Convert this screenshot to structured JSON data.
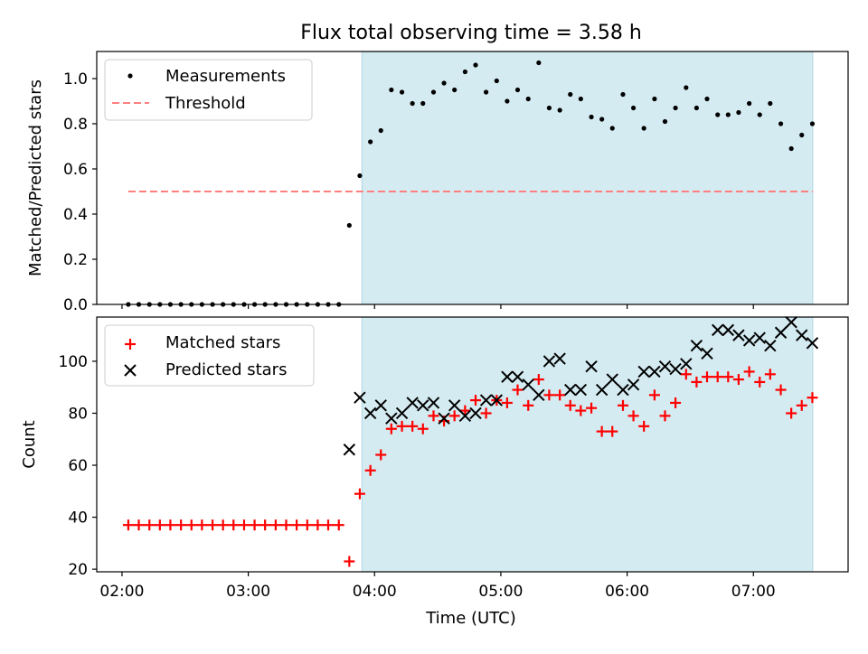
{
  "figure": {
    "title": "Flux total observing time = 3.58 h",
    "xlabel": "Time (UTC)",
    "x_ticks": [
      {
        "value": 2.0,
        "label": "02:00"
      },
      {
        "value": 3.0,
        "label": "03:00"
      },
      {
        "value": 4.0,
        "label": "04:00"
      },
      {
        "value": 5.0,
        "label": "05:00"
      },
      {
        "value": 6.0,
        "label": "06:00"
      },
      {
        "value": 7.0,
        "label": "07:00"
      }
    ],
    "shade_color": "#d4ebf1",
    "shade_edge_color": "#add8e6"
  },
  "chart_data": [
    {
      "type": "scatter",
      "panel": "top",
      "ylabel": "Matched/Predicted stars",
      "xlim": [
        1.8,
        7.75
      ],
      "ylim": [
        0.0,
        1.12
      ],
      "yticks": [
        0.0,
        0.2,
        0.4,
        0.6,
        0.8,
        1.0
      ],
      "ytick_labels": [
        "0.0",
        "0.2",
        "0.4",
        "0.6",
        "0.8",
        "1.0"
      ],
      "shaded_interval": [
        3.9,
        7.47
      ],
      "legend_position": "top-left",
      "legend": [
        {
          "label": "Measurements",
          "marker": "dot",
          "color": "#000000"
        },
        {
          "label": "Threshold",
          "marker": "dashed-line",
          "color": "#ff7f7f"
        }
      ],
      "threshold": {
        "value": 0.5,
        "x_start": 2.05,
        "x_end": 7.47,
        "color": "#ff7f7f"
      },
      "series": [
        {
          "name": "Measurements",
          "color": "#000000",
          "x": [
            2.05,
            2.133,
            2.217,
            2.3,
            2.383,
            2.467,
            2.55,
            2.633,
            2.717,
            2.8,
            2.883,
            2.967,
            3.05,
            3.133,
            3.217,
            3.3,
            3.383,
            3.467,
            3.55,
            3.633,
            3.717,
            3.8,
            3.883,
            3.967,
            4.05,
            4.133,
            4.217,
            4.3,
            4.383,
            4.467,
            4.55,
            4.633,
            4.717,
            4.8,
            4.883,
            4.967,
            5.05,
            5.133,
            5.217,
            5.3,
            5.383,
            5.467,
            5.55,
            5.633,
            5.717,
            5.8,
            5.883,
            5.967,
            6.05,
            6.133,
            6.217,
            6.3,
            6.383,
            6.467,
            6.55,
            6.633,
            6.717,
            6.8,
            6.883,
            6.967,
            7.05,
            7.133,
            7.217,
            7.3,
            7.383,
            7.467
          ],
          "y": [
            0,
            0,
            0,
            0,
            0,
            0,
            0,
            0,
            0,
            0,
            0,
            0,
            0,
            0,
            0,
            0,
            0,
            0,
            0,
            0,
            0,
            0.35,
            0.57,
            0.72,
            0.77,
            0.95,
            0.94,
            0.89,
            0.89,
            0.94,
            0.98,
            0.95,
            1.03,
            1.06,
            0.94,
            0.99,
            0.9,
            0.95,
            0.91,
            1.07,
            0.87,
            0.86,
            0.93,
            0.91,
            0.83,
            0.82,
            0.78,
            0.93,
            0.87,
            0.78,
            0.91,
            0.81,
            0.87,
            0.96,
            0.87,
            0.91,
            0.84,
            0.84,
            0.85,
            0.89,
            0.84,
            0.89,
            0.8,
            0.69,
            0.75,
            0.8
          ]
        }
      ]
    },
    {
      "type": "scatter",
      "panel": "bottom",
      "ylabel": "Count",
      "xlim": [
        1.8,
        7.75
      ],
      "ylim": [
        19.0,
        117.0
      ],
      "yticks": [
        20,
        40,
        60,
        80,
        100
      ],
      "ytick_labels": [
        "20",
        "40",
        "60",
        "80",
        "100"
      ],
      "shaded_interval": [
        3.9,
        7.47
      ],
      "legend_position": "top-left",
      "legend": [
        {
          "label": "Matched stars",
          "marker": "plus",
          "color": "#ff0000"
        },
        {
          "label": "Predicted stars",
          "marker": "x",
          "color": "#000000"
        }
      ],
      "series": [
        {
          "name": "Matched stars",
          "marker": "plus",
          "color": "#ff0000",
          "x": [
            2.05,
            2.133,
            2.217,
            2.3,
            2.383,
            2.467,
            2.55,
            2.633,
            2.717,
            2.8,
            2.883,
            2.967,
            3.05,
            3.133,
            3.217,
            3.3,
            3.383,
            3.467,
            3.55,
            3.633,
            3.717,
            3.8,
            3.883,
            3.967,
            4.05,
            4.133,
            4.217,
            4.3,
            4.383,
            4.467,
            4.55,
            4.633,
            4.717,
            4.8,
            4.883,
            4.967,
            5.05,
            5.133,
            5.217,
            5.3,
            5.383,
            5.467,
            5.55,
            5.633,
            5.717,
            5.8,
            5.883,
            5.967,
            6.05,
            6.133,
            6.217,
            6.3,
            6.383,
            6.467,
            6.55,
            6.633,
            6.717,
            6.8,
            6.883,
            6.967,
            7.05,
            7.133,
            7.217,
            7.3,
            7.383,
            7.467
          ],
          "y": [
            37,
            37,
            37,
            37,
            37,
            37,
            37,
            37,
            37,
            37,
            37,
            37,
            37,
            37,
            37,
            37,
            37,
            37,
            37,
            37,
            37,
            23,
            49,
            58,
            64,
            74,
            75,
            75,
            74,
            79,
            77,
            79,
            81,
            85,
            80,
            85,
            84,
            89,
            83,
            93,
            87,
            87,
            83,
            81,
            82,
            73,
            73,
            83,
            79,
            75,
            87,
            79,
            84,
            95,
            92,
            94,
            94,
            94,
            93,
            96,
            92,
            95,
            89,
            80,
            83,
            86
          ]
        },
        {
          "name": "Predicted stars",
          "marker": "x",
          "color": "#000000",
          "x": [
            3.8,
            3.883,
            3.967,
            4.05,
            4.133,
            4.217,
            4.3,
            4.383,
            4.467,
            4.55,
            4.633,
            4.717,
            4.8,
            4.883,
            4.967,
            5.05,
            5.133,
            5.217,
            5.3,
            5.383,
            5.467,
            5.55,
            5.633,
            5.717,
            5.8,
            5.883,
            5.967,
            6.05,
            6.133,
            6.217,
            6.3,
            6.383,
            6.467,
            6.55,
            6.633,
            6.717,
            6.8,
            6.883,
            6.967,
            7.05,
            7.133,
            7.217,
            7.3,
            7.383,
            7.467
          ],
          "y": [
            66,
            86,
            80,
            83,
            78,
            80,
            84,
            83,
            84,
            78,
            83,
            79,
            80,
            85,
            85,
            94,
            94,
            91,
            87,
            100,
            101,
            89,
            89,
            98,
            89,
            93,
            89,
            91,
            96,
            96,
            98,
            97,
            99,
            106,
            103,
            112,
            112,
            110,
            108,
            109,
            106,
            111,
            115,
            110,
            107
          ]
        }
      ]
    }
  ]
}
